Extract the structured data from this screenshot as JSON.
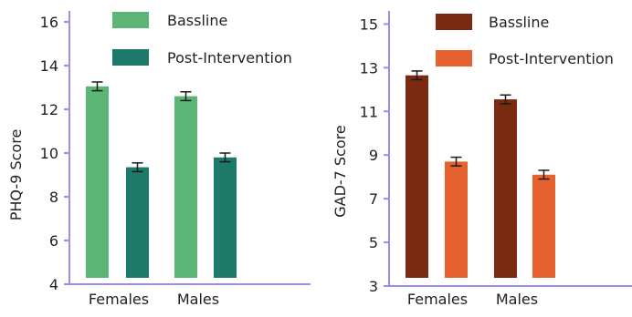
{
  "colors": {
    "axis": "#9b8cf0",
    "error": "#1a1a1a",
    "text": "#222222"
  },
  "chart_data": [
    {
      "type": "bar",
      "title": "",
      "xlabel": "",
      "ylabel": "PHQ-9 Score",
      "categories": [
        "Females",
        "Males"
      ],
      "ylim": [
        4,
        16.5
      ],
      "yticks": [
        4,
        6,
        8,
        10,
        12,
        14,
        16
      ],
      "grid": false,
      "legend_position": "top",
      "series": [
        {
          "name": "Bassline",
          "color": "#5bb676",
          "values": [
            13.05,
            12.6
          ],
          "errors": [
            0.2,
            0.2
          ]
        },
        {
          "name": "Post-Intervention",
          "color": "#1b7a68",
          "values": [
            9.35,
            9.8
          ],
          "errors": [
            0.2,
            0.2
          ]
        }
      ]
    },
    {
      "type": "bar",
      "title": "",
      "xlabel": "",
      "ylabel": "GAD-7 Score",
      "categories": [
        "Females",
        "Males"
      ],
      "ylim": [
        3,
        15.6
      ],
      "yticks": [
        3,
        5,
        7,
        9,
        11,
        13,
        15
      ],
      "grid": false,
      "legend_position": "top",
      "series": [
        {
          "name": "Bassline",
          "color": "#7a2a10",
          "values": [
            12.65,
            11.55
          ],
          "errors": [
            0.2,
            0.2
          ]
        },
        {
          "name": "Post-Intervention",
          "color": "#e5622e",
          "values": [
            8.7,
            8.1
          ],
          "errors": [
            0.2,
            0.2
          ]
        }
      ]
    }
  ]
}
